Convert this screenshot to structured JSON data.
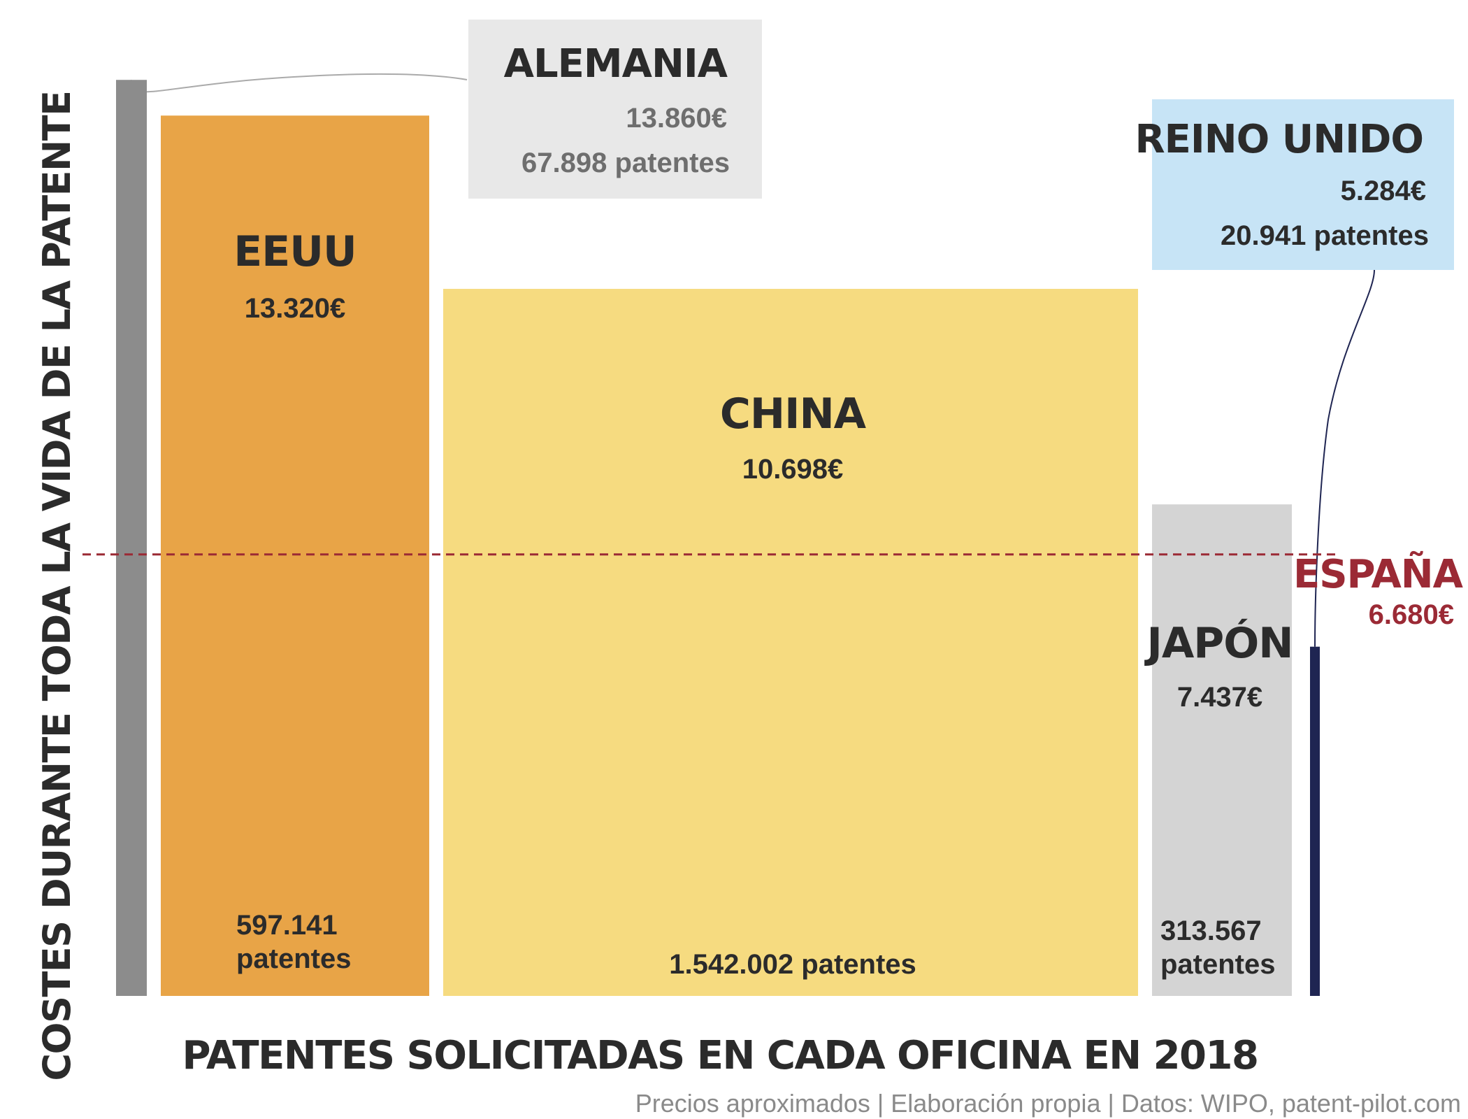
{
  "chart_data": {
    "type": "bar",
    "variant": "variable-width (marimekko-style): bar width = patents filed, bar height = lifetime cost",
    "ylabel": "COSTES DURANTE TODA LA VIDA DE LA PATENTE",
    "xlabel": "PATENTES SOLICITADAS EN CADA OFICINA EN 2018",
    "footnote": "Precios aproximados | Elaboración propia | Datos: WIPO, patent-pilot.com",
    "ylim": [
      0,
      15000
    ],
    "series": [
      {
        "name": "ALEMANIA",
        "cost": 13860,
        "patents": 67898,
        "cost_label": "13.860€",
        "patents_label": "67.898 patentes",
        "color": "#8c8c8c",
        "box_color": "#e8e8e8",
        "text_color": "#6e6e6e"
      },
      {
        "name": "EEUU",
        "cost": 13320,
        "patents": 597141,
        "cost_label": "13.320€",
        "patents_label_1": "597.141",
        "patents_label_2": "patentes",
        "color": "#e8a447",
        "text_color": "#2b2b2b"
      },
      {
        "name": "CHINA",
        "cost": 10698,
        "patents": 1542002,
        "cost_label": "10.698€",
        "patents_label": "1.542.002 patentes",
        "color": "#f6db80",
        "text_color": "#2b2b2b"
      },
      {
        "name": "JAPÓN",
        "cost": 7437,
        "patents": 313567,
        "cost_label": "7.437€",
        "patents_label_1": "313.567",
        "patents_label_2": "patentes",
        "color": "#d4d4d4",
        "text_color": "#2b2b2b"
      },
      {
        "name": "REINO UNIDO",
        "cost": 5284,
        "patents": 20941,
        "cost_label": "5.284€",
        "patents_label": "20.941 patentes",
        "color": "#1f2552",
        "box_color": "#c7e4f6",
        "text_color": "#2b2b2b"
      }
    ],
    "reference_line": {
      "name": "ESPAÑA",
      "cost": 6680,
      "cost_label": "6.680€",
      "color": "#9b2a35",
      "style": "dashed"
    }
  }
}
